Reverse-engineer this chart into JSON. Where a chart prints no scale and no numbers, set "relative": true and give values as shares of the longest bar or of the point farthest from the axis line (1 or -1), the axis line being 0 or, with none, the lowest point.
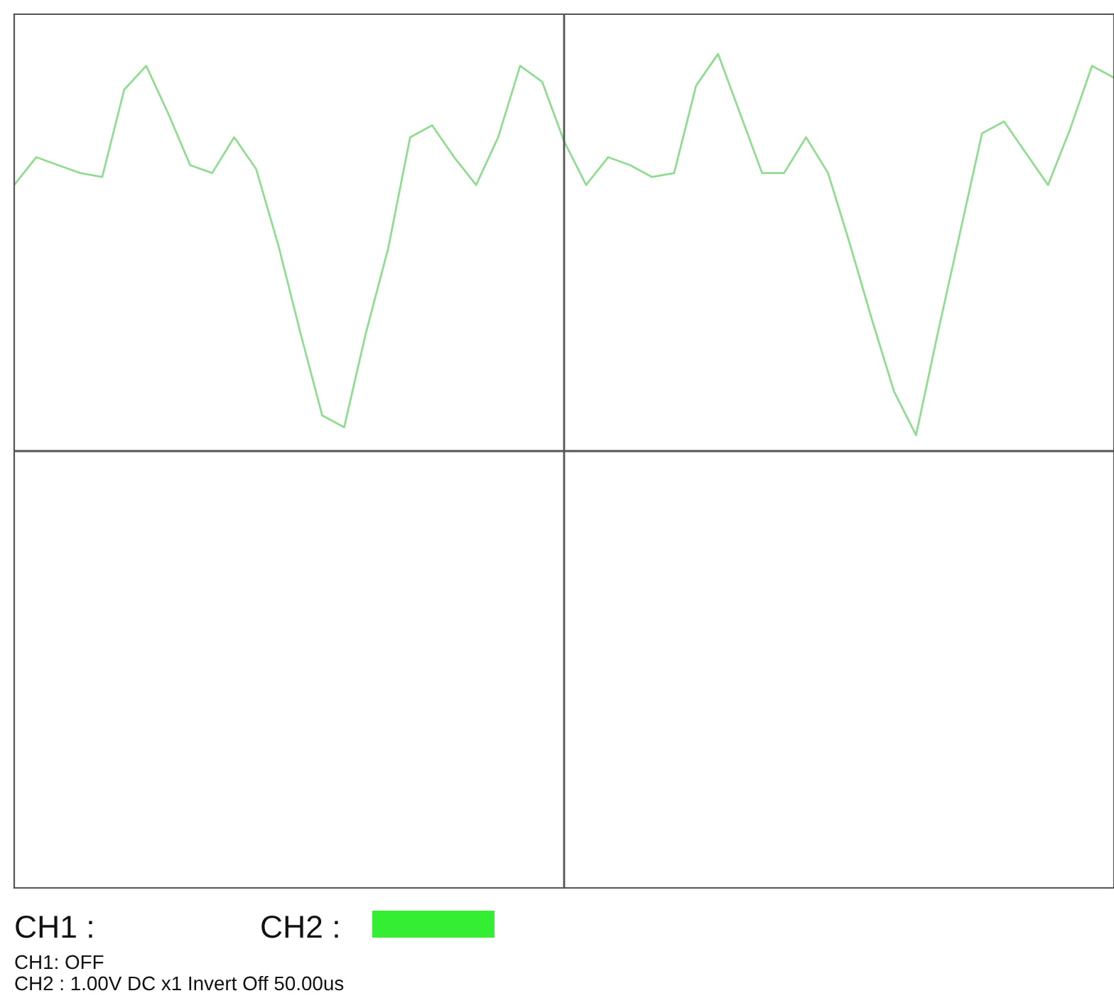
{
  "chart_data": {
    "type": "line",
    "relative": true,
    "grid": false,
    "legend": false,
    "categories": [
      null,
      null,
      null,
      null,
      null,
      null,
      null,
      null,
      null,
      null,
      null,
      null,
      null,
      null,
      null,
      null,
      null,
      null,
      null,
      null,
      null,
      null,
      null,
      null,
      null,
      null,
      null,
      null,
      null,
      null,
      null,
      null,
      null,
      null,
      null,
      null,
      null,
      null,
      null,
      null,
      null,
      null,
      null,
      null,
      null,
      null,
      null,
      null,
      null,
      null,
      null
    ],
    "series": [
      {
        "color": "#90dc90",
        "values": [
          0.67,
          0.74,
          0.72,
          0.7,
          0.69,
          0.91,
          0.97,
          0.85,
          0.72,
          0.7,
          0.79,
          0.71,
          0.52,
          0.3,
          0.09,
          0.06,
          0.3,
          0.51,
          0.79,
          0.82,
          0.74,
          0.67,
          0.79,
          0.97,
          0.93,
          0.78,
          0.67,
          0.74,
          0.72,
          0.69,
          0.7,
          0.92,
          1.0,
          0.85,
          0.7,
          0.7,
          0.79,
          0.7,
          0.52,
          0.33,
          0.15,
          0.04,
          0.3,
          0.55,
          0.8,
          0.83,
          0.75,
          0.67,
          0.81,
          0.97,
          0.94
        ]
      }
    ],
    "annotations": [
      "CH1 :",
      "CH2 :",
      "CH1: OFF",
      "CH2 : 1.00V DC x1 Invert Off 50.00us"
    ]
  }
}
